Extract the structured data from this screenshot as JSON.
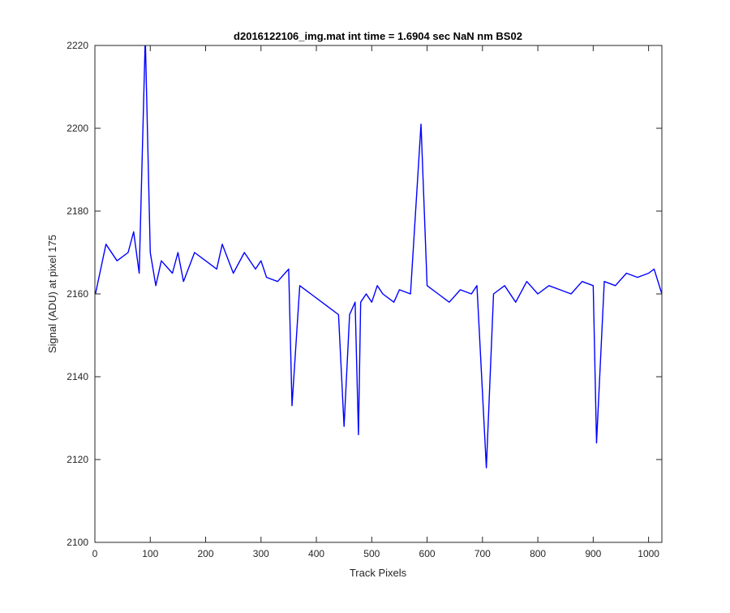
{
  "chart_data": {
    "type": "line",
    "title": "d2016122106_img.mat int time = 1.6904 sec  NaN nm BS02",
    "xlabel": "Track Pixels",
    "ylabel": "Signal (ADU) at pixel 175",
    "xlim": [
      0,
      1024
    ],
    "ylim": [
      2100,
      2220
    ],
    "xticks": [
      0,
      100,
      200,
      300,
      400,
      500,
      600,
      700,
      800,
      900,
      1000
    ],
    "yticks": [
      2100,
      2120,
      2140,
      2160,
      2180,
      2200,
      2220
    ],
    "xtick_labels": [
      "0",
      "100",
      "200",
      "300",
      "400",
      "500",
      "600",
      "700",
      "800",
      "900",
      "1000"
    ],
    "ytick_labels": [
      "2100",
      "2120",
      "2140",
      "2160",
      "2180",
      "2200",
      "2220"
    ],
    "grid": false,
    "legend": "none",
    "series": [
      {
        "color": "#0000ff",
        "x": [
          1,
          20,
          40,
          60,
          70,
          80,
          91,
          100,
          110,
          120,
          140,
          150,
          160,
          180,
          200,
          220,
          230,
          250,
          270,
          290,
          300,
          310,
          330,
          350,
          356,
          370,
          390,
          410,
          420,
          440,
          450,
          460,
          470,
          476,
          480,
          490,
          500,
          510,
          520,
          540,
          550,
          570,
          589,
          600,
          620,
          640,
          660,
          680,
          690,
          707,
          720,
          740,
          760,
          780,
          800,
          820,
          840,
          860,
          880,
          900,
          906,
          920,
          940,
          960,
          980,
          1000,
          1010,
          1024
        ],
        "y": [
          2160,
          2172,
          2168,
          2170,
          2175,
          2165,
          2222,
          2170,
          2162,
          2168,
          2165,
          2170,
          2163,
          2170,
          2168,
          2166,
          2172,
          2165,
          2170,
          2166,
          2168,
          2164,
          2163,
          2166,
          2133,
          2162,
          2160,
          2158,
          2157,
          2155,
          2128,
          2155,
          2158,
          2126,
          2158,
          2160,
          2158,
          2162,
          2160,
          2158,
          2161,
          2160,
          2201,
          2162,
          2160,
          2158,
          2161,
          2160,
          2162,
          2118,
          2160,
          2162,
          2158,
          2163,
          2160,
          2162,
          2161,
          2160,
          2163,
          2162,
          2124,
          2163,
          2162,
          2165,
          2164,
          2165,
          2166,
          2160
        ]
      }
    ]
  }
}
